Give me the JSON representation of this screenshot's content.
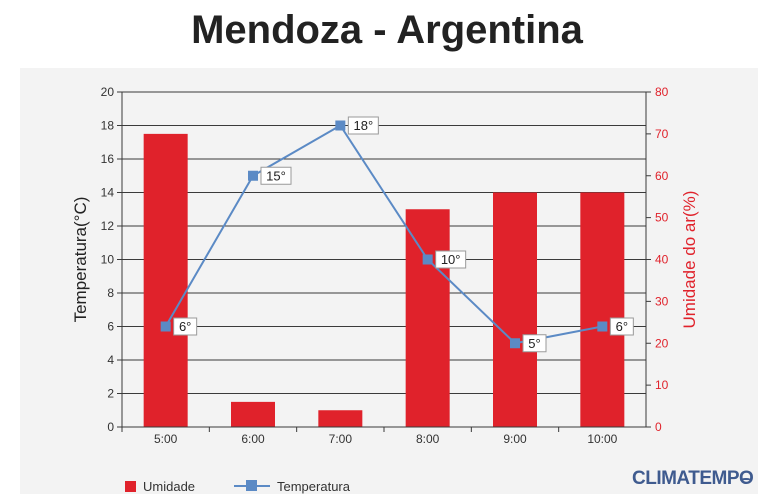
{
  "chart_data": {
    "type": "bar",
    "title": "Mendoza - Argentina",
    "categories": [
      "5:00",
      "6:00",
      "7:00",
      "8:00",
      "9:00",
      "10:00"
    ],
    "series": [
      {
        "name": "Umidade",
        "kind": "bar",
        "axis": "right",
        "color": "#e0222b",
        "values": [
          70,
          6,
          4,
          52,
          56,
          56
        ]
      },
      {
        "name": "Temperatura",
        "kind": "line",
        "axis": "left",
        "color": "#5b8ac5",
        "values": [
          6,
          15,
          18,
          10,
          5,
          6
        ],
        "labels": [
          "6°",
          "15°",
          "18°",
          "10°",
          "5°",
          "6°"
        ]
      }
    ],
    "ylabel": "Temperatura(°C)",
    "ylabel_right": "Umidade do ar(%)",
    "ylim": [
      0,
      20
    ],
    "ylim_right": [
      0,
      80
    ],
    "yticks": [
      "0",
      "2",
      "4",
      "6",
      "8",
      "10",
      "12",
      "14",
      "16",
      "18",
      "20"
    ],
    "yticks_right": [
      "0",
      "10",
      "20",
      "30",
      "40",
      "50",
      "60",
      "70",
      "80"
    ],
    "grid": true,
    "legend": "bottom-left"
  },
  "brand": "CLIMATEMPO"
}
